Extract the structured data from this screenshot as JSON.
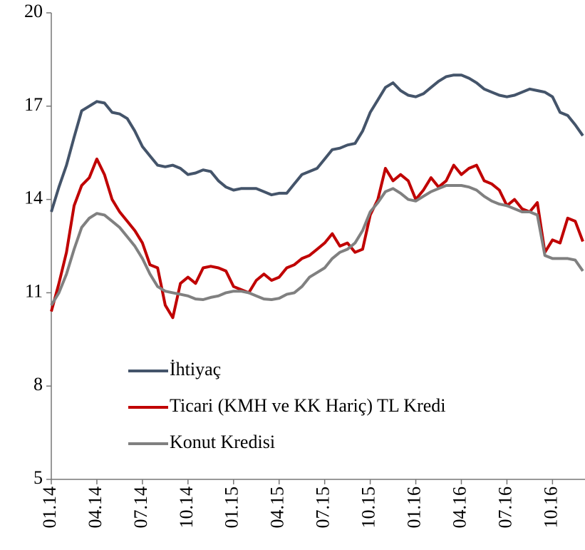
{
  "chart_data": {
    "type": "line",
    "categories": [
      "01.14",
      null,
      null,
      null,
      null,
      null,
      "04.14",
      null,
      null,
      null,
      null,
      null,
      "07.14",
      null,
      null,
      null,
      null,
      null,
      "10.14",
      null,
      null,
      null,
      null,
      null,
      "01.15",
      null,
      null,
      null,
      null,
      null,
      "04.15",
      null,
      null,
      null,
      null,
      null,
      "07.15",
      null,
      null,
      null,
      null,
      null,
      "10.15",
      null,
      null,
      null,
      null,
      null,
      "01.16",
      null,
      null,
      null,
      null,
      null,
      "04.16",
      null,
      null,
      null,
      null,
      null,
      "07.16",
      null,
      null,
      null,
      null,
      null,
      "10.16",
      null,
      null,
      null,
      null
    ],
    "series": [
      {
        "name": "İhtiyaç",
        "color": "#44546a",
        "values": [
          13.6,
          14.4,
          15.1,
          16.0,
          16.85,
          17.0,
          17.15,
          17.1,
          16.8,
          16.75,
          16.6,
          16.2,
          15.7,
          15.4,
          15.1,
          15.05,
          15.1,
          15.0,
          14.8,
          14.85,
          14.95,
          14.9,
          14.6,
          14.4,
          14.3,
          14.35,
          14.35,
          14.35,
          14.25,
          14.15,
          14.2,
          14.2,
          14.5,
          14.8,
          14.9,
          15.0,
          15.3,
          15.6,
          15.65,
          15.75,
          15.8,
          16.2,
          16.8,
          17.2,
          17.6,
          17.75,
          17.5,
          17.35,
          17.3,
          17.4,
          17.6,
          17.8,
          17.95,
          18.0,
          18.0,
          17.9,
          17.75,
          17.55,
          17.45,
          17.35,
          17.3,
          17.35,
          17.45,
          17.55,
          17.5,
          17.45,
          17.3,
          16.8,
          16.7,
          16.4,
          16.05
        ]
      },
      {
        "name": "Ticari (KMH ve KK Hariç) TL Kredi",
        "color": "#c00000",
        "values": [
          10.4,
          11.3,
          12.3,
          13.8,
          14.45,
          14.7,
          15.3,
          14.8,
          14.0,
          13.6,
          13.3,
          13.0,
          12.6,
          11.9,
          11.8,
          10.6,
          10.2,
          11.3,
          11.5,
          11.3,
          11.8,
          11.85,
          11.8,
          11.7,
          11.2,
          11.1,
          11.0,
          11.4,
          11.6,
          11.4,
          11.5,
          11.8,
          11.9,
          12.1,
          12.2,
          12.4,
          12.6,
          12.9,
          12.5,
          12.6,
          12.3,
          12.4,
          13.5,
          14.0,
          15.0,
          14.6,
          14.8,
          14.6,
          14.0,
          14.3,
          14.7,
          14.4,
          14.6,
          15.1,
          14.8,
          15.0,
          15.1,
          14.6,
          14.5,
          14.3,
          13.8,
          14.0,
          13.7,
          13.6,
          13.9,
          12.3,
          12.7,
          12.6,
          13.4,
          13.3,
          12.65
        ]
      },
      {
        "name": "Konut Kredisi",
        "color": "#808080",
        "values": [
          10.6,
          11.0,
          11.6,
          12.4,
          13.1,
          13.4,
          13.55,
          13.5,
          13.3,
          13.1,
          12.8,
          12.5,
          12.1,
          11.6,
          11.2,
          11.05,
          11.0,
          10.95,
          10.9,
          10.8,
          10.78,
          10.85,
          10.9,
          11.0,
          11.05,
          11.05,
          11.0,
          10.9,
          10.8,
          10.78,
          10.82,
          10.95,
          11.0,
          11.2,
          11.5,
          11.65,
          11.8,
          12.1,
          12.3,
          12.4,
          12.6,
          13.0,
          13.6,
          13.9,
          14.25,
          14.35,
          14.2,
          14.0,
          13.95,
          14.1,
          14.25,
          14.35,
          14.45,
          14.45,
          14.45,
          14.4,
          14.3,
          14.1,
          13.95,
          13.85,
          13.8,
          13.7,
          13.6,
          13.6,
          13.5,
          12.2,
          12.1,
          12.1,
          12.1,
          12.05,
          11.7
        ]
      }
    ],
    "ylim": [
      5,
      20
    ],
    "yticks": [
      5,
      8,
      11,
      14,
      17,
      20
    ],
    "grid": false,
    "legend": "lower left"
  }
}
